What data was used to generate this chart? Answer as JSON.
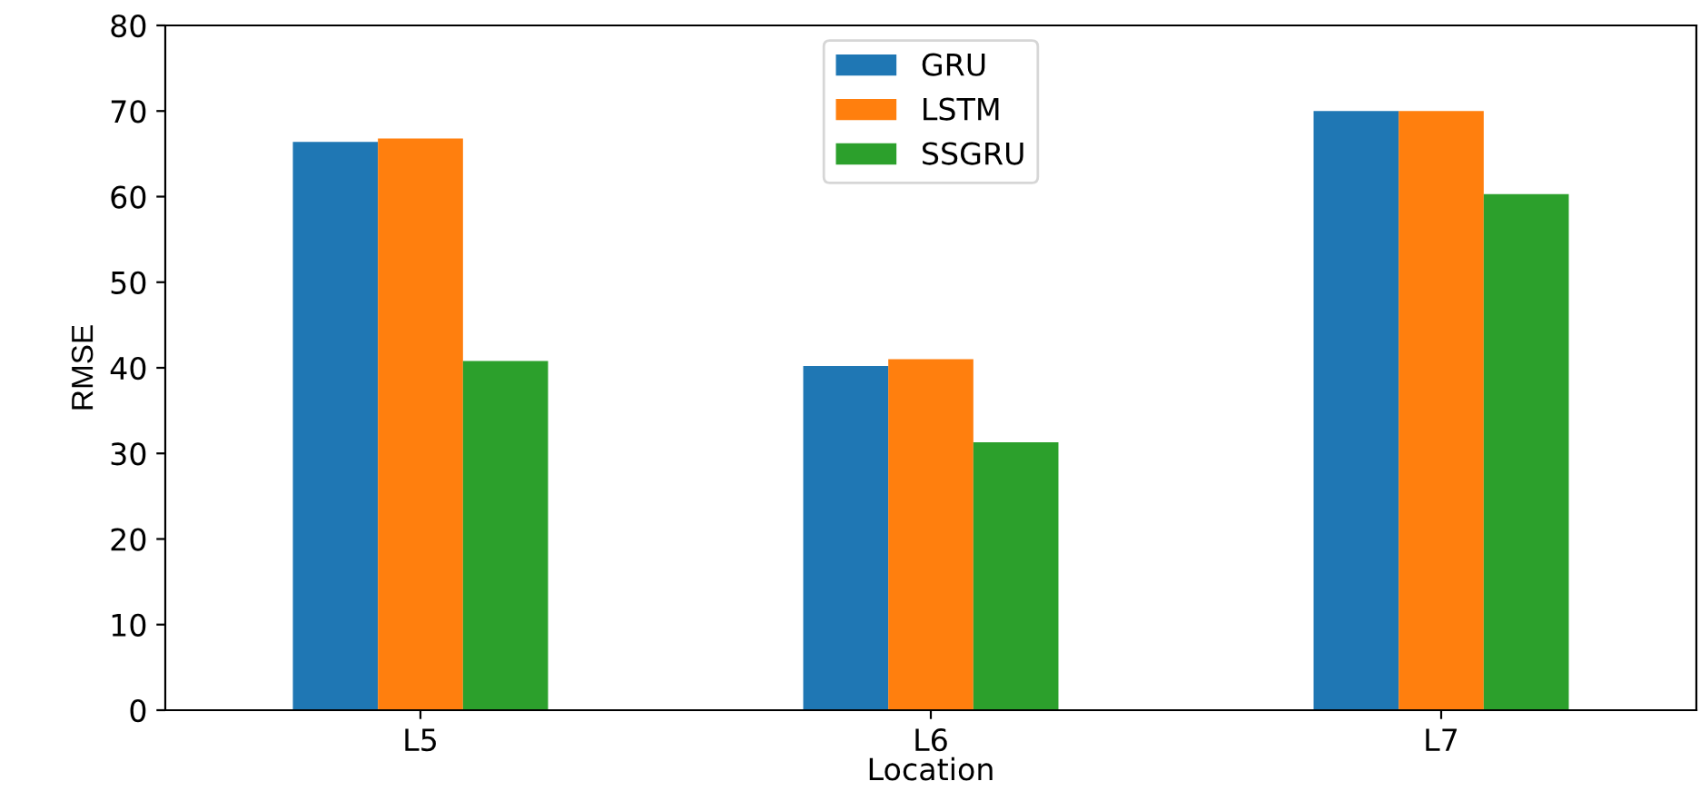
{
  "chart_data": {
    "type": "bar",
    "xlabel": "Location",
    "ylabel": "RMSE",
    "categories": [
      "L5",
      "L6",
      "L7"
    ],
    "series": [
      {
        "name": "GRU",
        "color": "#1f77b4",
        "values": [
          66.4,
          40.2,
          70.0
        ]
      },
      {
        "name": "LSTM",
        "color": "#ff7f0e",
        "values": [
          66.8,
          41.0,
          70.0
        ]
      },
      {
        "name": "SSGRU",
        "color": "#2ca02c",
        "values": [
          40.8,
          31.3,
          60.3
        ]
      }
    ],
    "ylim": [
      0,
      80
    ],
    "yticks": [
      0,
      10,
      20,
      30,
      40,
      50,
      60,
      70,
      80
    ],
    "grid": false,
    "legend": "top"
  }
}
